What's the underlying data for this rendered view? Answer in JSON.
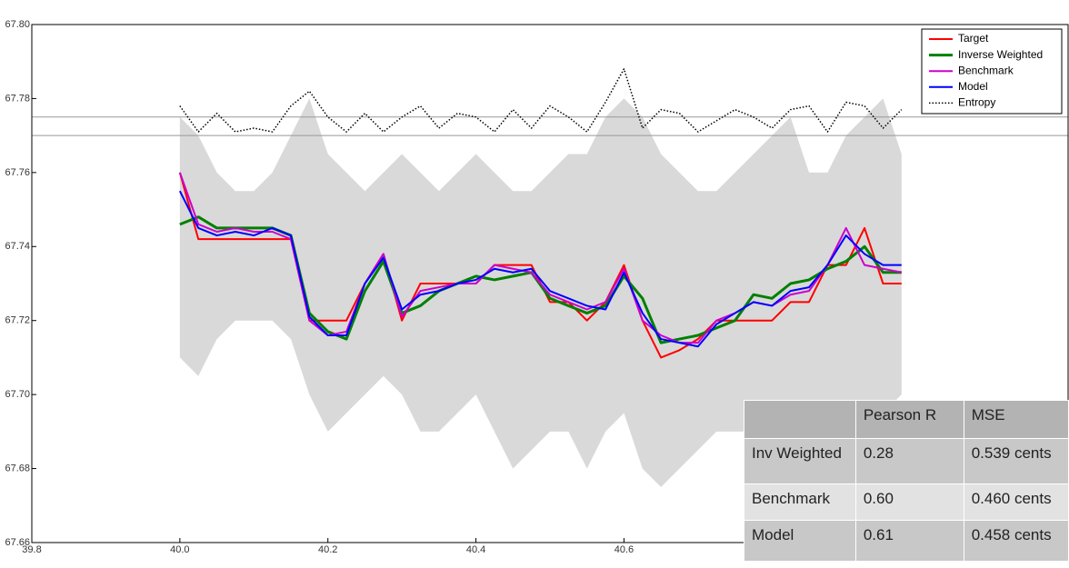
{
  "chart_data": {
    "type": "line",
    "x": [
      40.0,
      40.025,
      40.05,
      40.075,
      40.1,
      40.125,
      40.15,
      40.175,
      40.2,
      40.225,
      40.25,
      40.275,
      40.3,
      40.325,
      40.35,
      40.375,
      40.4,
      40.425,
      40.45,
      40.475,
      40.5,
      40.525,
      40.55,
      40.575,
      40.6,
      40.625,
      40.65,
      40.675,
      40.7,
      40.725,
      40.75,
      40.775,
      40.8,
      40.825,
      40.85,
      40.875,
      40.9,
      40.925,
      40.95,
      40.975
    ],
    "series": [
      {
        "name": "Target",
        "color": "#ff0000",
        "values": [
          67.76,
          67.742,
          67.742,
          67.742,
          67.742,
          67.742,
          67.742,
          67.72,
          67.72,
          67.72,
          67.73,
          67.738,
          67.72,
          67.73,
          67.73,
          67.73,
          67.73,
          67.735,
          67.735,
          67.735,
          67.725,
          67.725,
          67.72,
          67.725,
          67.735,
          67.72,
          67.71,
          67.712,
          67.715,
          67.72,
          67.72,
          67.72,
          67.72,
          67.725,
          67.725,
          67.735,
          67.735,
          67.745,
          67.73,
          67.73
        ]
      },
      {
        "name": "Inverse Weighted",
        "color": "#008000",
        "values": [
          67.746,
          67.748,
          67.745,
          67.745,
          67.745,
          67.745,
          67.743,
          67.722,
          67.717,
          67.715,
          67.728,
          67.736,
          67.722,
          67.724,
          67.728,
          67.73,
          67.732,
          67.731,
          67.732,
          67.733,
          67.726,
          67.724,
          67.722,
          67.724,
          67.732,
          67.726,
          67.714,
          67.715,
          67.716,
          67.718,
          67.72,
          67.727,
          67.726,
          67.73,
          67.731,
          67.734,
          67.736,
          67.74,
          67.733,
          67.733
        ]
      },
      {
        "name": "Benchmark",
        "color": "#cc00cc",
        "values": [
          67.76,
          67.746,
          67.744,
          67.745,
          67.744,
          67.744,
          67.742,
          67.72,
          67.716,
          67.717,
          67.73,
          67.738,
          67.721,
          67.728,
          67.729,
          67.73,
          67.73,
          67.735,
          67.734,
          67.733,
          67.727,
          67.725,
          67.723,
          67.725,
          67.734,
          67.72,
          67.716,
          67.714,
          67.714,
          67.72,
          67.722,
          67.725,
          67.724,
          67.727,
          67.728,
          67.735,
          67.745,
          67.735,
          67.734,
          67.733
        ]
      },
      {
        "name": "Model",
        "color": "#0000ff",
        "values": [
          67.755,
          67.745,
          67.743,
          67.744,
          67.743,
          67.745,
          67.743,
          67.721,
          67.716,
          67.716,
          67.73,
          67.737,
          67.723,
          67.727,
          67.728,
          67.73,
          67.731,
          67.734,
          67.733,
          67.734,
          67.728,
          67.726,
          67.724,
          67.723,
          67.733,
          67.722,
          67.715,
          67.714,
          67.713,
          67.719,
          67.722,
          67.725,
          67.724,
          67.728,
          67.729,
          67.735,
          67.743,
          67.738,
          67.735,
          67.735
        ]
      },
      {
        "name": "Entropy",
        "color": "#000000",
        "dotted": true,
        "values": [
          67.778,
          67.771,
          67.776,
          67.771,
          67.772,
          67.771,
          67.778,
          67.782,
          67.775,
          67.771,
          67.776,
          67.771,
          67.775,
          67.778,
          67.772,
          67.776,
          67.775,
          67.771,
          67.777,
          67.772,
          67.778,
          67.775,
          67.771,
          67.779,
          67.788,
          67.772,
          67.777,
          67.776,
          67.771,
          67.774,
          67.777,
          67.775,
          67.772,
          67.777,
          67.778,
          67.771,
          67.779,
          67.778,
          67.772,
          67.777
        ]
      }
    ],
    "band": {
      "color": "#d9d9d9",
      "lower": [
        67.71,
        67.705,
        67.715,
        67.72,
        67.72,
        67.72,
        67.715,
        67.7,
        67.69,
        67.695,
        67.7,
        67.705,
        67.7,
        67.69,
        67.69,
        67.695,
        67.7,
        67.69,
        67.68,
        67.685,
        67.69,
        67.69,
        67.68,
        67.69,
        67.695,
        67.68,
        67.675,
        67.68,
        67.685,
        67.69,
        67.69,
        67.69,
        67.695,
        67.69,
        67.69,
        67.69,
        67.69,
        67.69,
        67.695,
        67.7
      ],
      "upper": [
        67.775,
        67.77,
        67.76,
        67.755,
        67.755,
        67.76,
        67.77,
        67.78,
        67.765,
        67.76,
        67.755,
        67.76,
        67.765,
        67.76,
        67.755,
        67.76,
        67.765,
        67.76,
        67.755,
        67.755,
        67.76,
        67.765,
        67.765,
        67.775,
        67.78,
        67.775,
        67.765,
        67.76,
        67.755,
        67.755,
        67.76,
        67.765,
        67.77,
        67.775,
        67.76,
        67.76,
        67.77,
        67.775,
        67.78,
        67.765
      ]
    },
    "hlines": [
      67.77,
      67.775
    ],
    "xlim": [
      39.8,
      41.2
    ],
    "ylim": [
      67.66,
      67.8
    ],
    "xticks": [
      39.8,
      {
        "value": 40,
        "label": "40.0"
      },
      40.2,
      40.4,
      40.6
    ],
    "yticks": [
      {
        "value": 67.66,
        "label": "67.66"
      },
      {
        "value": 67.68,
        "label": "67.68"
      },
      {
        "value": 67.7,
        "label": "67.70"
      },
      {
        "value": 67.72,
        "label": "67.72"
      },
      {
        "value": 67.74,
        "label": "67.74"
      },
      {
        "value": 67.76,
        "label": "67.76"
      },
      {
        "value": 67.78,
        "label": "67.78"
      },
      {
        "value": 67.8,
        "label": "67.80"
      }
    ],
    "legend": "upper right"
  },
  "table": {
    "columns": [
      "Pearson R",
      "MSE"
    ],
    "rows": [
      [
        "Inv Weighted",
        "0.28",
        "0.539 cents"
      ],
      [
        "Benchmark",
        "0.60",
        "0.460 cents"
      ],
      [
        "Model",
        "0.61",
        "0.458 cents"
      ]
    ]
  }
}
